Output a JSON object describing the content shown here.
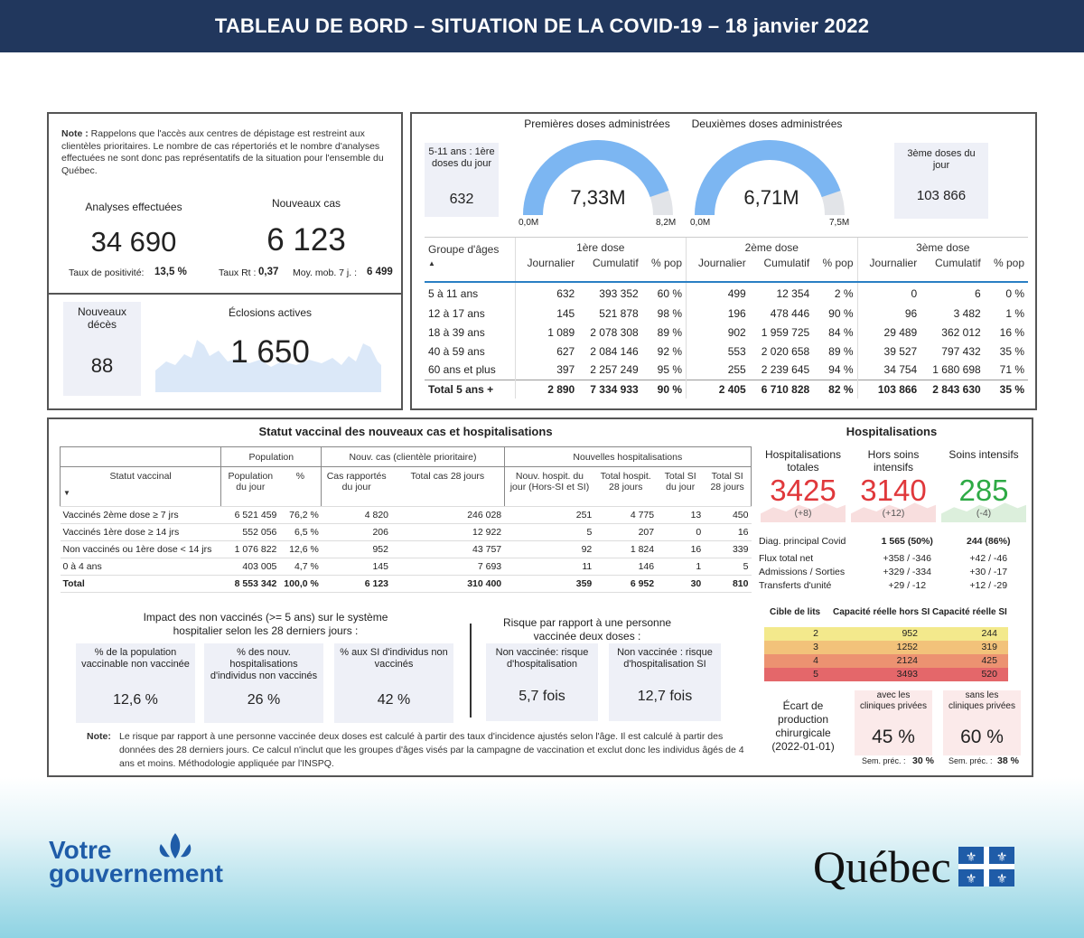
{
  "header": {
    "title": "TABLEAU DE BORD – SITUATION DE LA COVID-19 – 18 janvier 2022"
  },
  "colors": {
    "banner": "#21375d",
    "gauge": "#7cb6f2",
    "hosp_red": "#e0383b",
    "si_green": "#2eaa45",
    "accent_blue": "#1f5ca8"
  },
  "left_panel": {
    "note_bold": "Note :",
    "note_text": "Rappelons que l'accès aux centres de dépistage est restreint aux clientèles prioritaires. Le nombre de cas répertoriés et le nombre d'analyses effectuées ne sont donc pas représentatifs de la situation pour l'ensemble du Québec.",
    "analyses_label": "Analyses effectuées",
    "analyses_value": "34 690",
    "positivity_label": "Taux de positivité:",
    "positivity_value": "13,5 %",
    "new_cases_label": "Nouveaux cas",
    "new_cases_value": "6 123",
    "rt_label": "Taux Rt :",
    "rt_value": "0,37",
    "mm_label": "Moy. mob. 7 j. :",
    "mm_value": "6 499",
    "deaths_label": "Nouveaux décès",
    "deaths_value": "88",
    "outbreaks_label": "Éclosions actives",
    "outbreaks_value": "1 650"
  },
  "vaccination": {
    "box_511_label": "5-11 ans : 1ère doses du jour",
    "box_511_value": "632",
    "first_title": "Premières doses administrées",
    "second_title": "Deuxièmes doses administrées",
    "gauge1": {
      "value_text": "7,33M",
      "min": "0,0M",
      "max": "8,2M",
      "value": 7.33,
      "max_value": 8.2
    },
    "gauge2": {
      "value_text": "6,71M",
      "min": "0,0M",
      "max": "7,5M",
      "value": 6.71,
      "max_value": 7.5
    },
    "third_label": "3ème doses du jour",
    "third_value": "103 866",
    "table": {
      "group_header": "Groupe d'âges",
      "dose_headers": [
        "1ère dose",
        "2ème dose",
        "3ème dose"
      ],
      "sub_headers": [
        "Journalier",
        "Cumulatif",
        "% pop",
        "Journalier",
        "Cumulatif",
        "% pop",
        "Journalier",
        "Cumulatif",
        "% pop"
      ],
      "rows": [
        [
          "5 à 11 ans",
          "632",
          "393 352",
          "60 %",
          "499",
          "12 354",
          "2 %",
          "0",
          "6",
          "0 %"
        ],
        [
          "12 à 17 ans",
          "145",
          "521 878",
          "98 %",
          "196",
          "478 446",
          "90 %",
          "96",
          "3 482",
          "1 %"
        ],
        [
          "18 à 39 ans",
          "1 089",
          "2 078 308",
          "89 %",
          "902",
          "1 959 725",
          "84 %",
          "29 489",
          "362 012",
          "16 %"
        ],
        [
          "40 à 59 ans",
          "627",
          "2 084 146",
          "92 %",
          "553",
          "2 020 658",
          "89 %",
          "39 527",
          "797 432",
          "35 %"
        ],
        [
          "60 ans et plus",
          "397",
          "2 257 249",
          "95 %",
          "255",
          "2 239 645",
          "94 %",
          "34 754",
          "1 680 698",
          "71 %"
        ]
      ],
      "total": [
        "Total 5 ans +",
        "2 890",
        "7 334 933",
        "90 %",
        "2 405",
        "6 710 828",
        "82 %",
        "103 866",
        "2 843 630",
        "35 %"
      ]
    }
  },
  "status": {
    "title": "Statut vaccinal des nouveaux cas et hospitalisations",
    "group_headers": [
      "Population",
      "Nouv. cas (clientèle prioritaire)",
      "Nouvelles hospitalisations"
    ],
    "col_headers": [
      "Statut vaccinal",
      "Population du jour",
      "%",
      "Cas rapportés du jour",
      "Total cas 28 jours",
      "Nouv. hospit. du jour (Hors-SI et SI)",
      "Total hospit. 28 jours",
      "Total SI du jour",
      "Total SI 28 jours"
    ],
    "rows": [
      [
        "Vaccinés 2ème dose ≥ 7 jrs",
        "6 521 459",
        "76,2 %",
        "4 820",
        "246 028",
        "251",
        "4 775",
        "13",
        "450"
      ],
      [
        "Vaccinés 1ère dose ≥ 14 jrs",
        "552 056",
        "6,5 %",
        "206",
        "12 922",
        "5",
        "207",
        "0",
        "16"
      ],
      [
        "Non vaccinés ou 1ère dose < 14 jrs",
        "1 076 822",
        "12,6 %",
        "952",
        "43 757",
        "92",
        "1 824",
        "16",
        "339"
      ],
      [
        "0 à 4 ans",
        "403 005",
        "4,7 %",
        "145",
        "7 693",
        "11",
        "146",
        "1",
        "5"
      ]
    ],
    "total": [
      "Total",
      "8 553 342",
      "100,0 %",
      "6 123",
      "310 400",
      "359",
      "6 952",
      "30",
      "810"
    ],
    "impact_title": "Impact des non vaccinés (>= 5 ans) sur le système hospitalier selon les 28 derniers jours :",
    "impact_boxes": [
      {
        "label": "% de la population vaccinable non vaccinée",
        "value": "12,6 %"
      },
      {
        "label": "% des nouv. hospitalisations d'individus non vaccinés",
        "value": "26 %"
      },
      {
        "label": "% aux SI d'individus non vaccinés",
        "value": "42 %"
      }
    ],
    "risk_title": "Risque par rapport à une personne vaccinée deux doses :",
    "risk_boxes": [
      {
        "label": "Non vaccinée: risque d'hospitalisation",
        "value": "5,7 fois"
      },
      {
        "label": "Non vaccinée : risque d'hospitalisation SI",
        "value": "12,7 fois"
      }
    ],
    "note_bold": "Note:",
    "note_text": "Le risque par rapport à une personne vaccinée deux doses est calculé à partir des taux d'incidence ajustés selon l'âge. Il est calculé à partir des données des 28 derniers jours. Ce calcul n'inclut que les groupes d'âges visés par la campagne de vaccination et exclut donc les individus âgés de 4 ans et moins. Méthodologie appliquée par l'INSPQ."
  },
  "hospital": {
    "title": "Hospitalisations",
    "kpis": [
      {
        "label": "Hospitalisations totales",
        "value": "3425",
        "delta": "(+8)"
      },
      {
        "label": "Hors soins intensifs",
        "value": "3140",
        "delta": "(+12)"
      },
      {
        "label": "Soins intensifs",
        "value": "285",
        "delta": "(-4)"
      }
    ],
    "details": [
      {
        "label": "Diag. principal Covid",
        "v1": "1 565 (50%)",
        "v2": "244 (86%)"
      },
      {
        "label": "Flux total net",
        "v1": "+358 / -346",
        "v2": "+42 / -46"
      },
      {
        "label": "Admissions / Sorties",
        "v1": "+329 / -334",
        "v2": "+30 / -17"
      },
      {
        "label": "Transferts d'unité",
        "v1": "+29 / -12",
        "v2": "+12 / -29"
      }
    ],
    "beds_headers": [
      "Cible de lits",
      "Capacité réelle hors SI",
      "Capacité réelle SI"
    ],
    "beds_rows": [
      {
        "level": "2",
        "hors": "952",
        "si": "244",
        "color": "#f3e98c"
      },
      {
        "level": "3",
        "hors": "1252",
        "si": "319",
        "color": "#f2c27a"
      },
      {
        "level": "4",
        "hors": "2124",
        "si": "425",
        "color": "#ec9271"
      },
      {
        "level": "5",
        "hors": "3493",
        "si": "520",
        "color": "#e4676a"
      }
    ],
    "surgery_label": "Écart de production chirurgicale (2022-01-01)",
    "with_label": "avec les cliniques privées",
    "with_value": "45 %",
    "with_prev_label": "Sem. préc. :",
    "with_prev": "30 %",
    "without_label": "sans les cliniques privées",
    "without_value": "60 %",
    "without_prev_label": "Sem. préc. :",
    "without_prev": "38 %"
  },
  "footer": {
    "gov_line1": "Votre",
    "gov_line2": "gouvernement",
    "quebec": "Québec"
  },
  "chart_data": [
    {
      "type": "gauge",
      "title": "Premières doses administrées",
      "value": 7.33,
      "min": 0,
      "max": 8.2,
      "unit": "M"
    },
    {
      "type": "gauge",
      "title": "Deuxièmes doses administrées",
      "value": 6.71,
      "min": 0,
      "max": 7.5,
      "unit": "M"
    }
  ]
}
